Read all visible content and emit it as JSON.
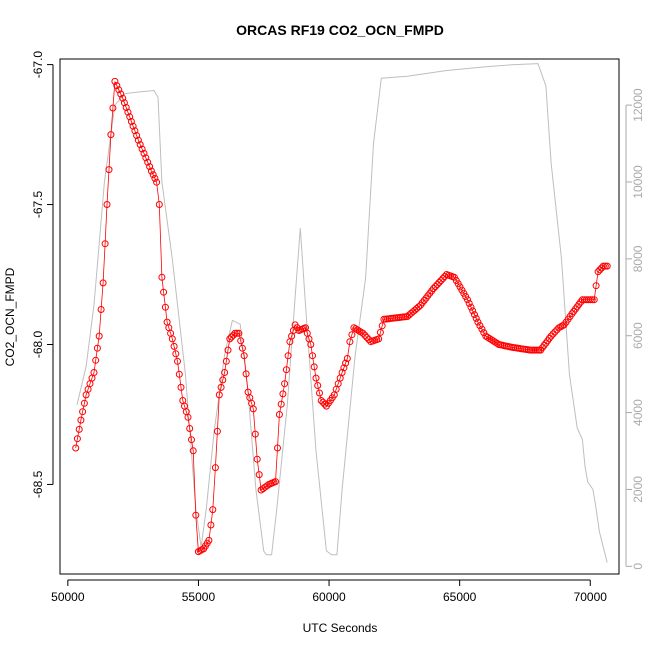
{
  "chart_data": {
    "type": "line",
    "title": "ORCAS RF19 CO2_OCN_FMPD",
    "xlabel": "UTC Seconds",
    "ylabel": "CO2_OCN_FMPD",
    "xlim": [
      49700,
      71100
    ],
    "ylim": [
      -68.82,
      -66.98
    ],
    "y2lim": [
      -200,
      13200
    ],
    "x_ticks": [
      50000,
      55000,
      60000,
      65000,
      70000
    ],
    "x_tick_labels": [
      "50000",
      "55000",
      "60000",
      "65000",
      "70000"
    ],
    "y_ticks": [
      -67.0,
      -67.5,
      -68.0,
      -68.5
    ],
    "y_tick_labels": [
      "-67.0",
      "-67.5",
      "-68.0",
      "-68.5"
    ],
    "y2_ticks": [
      0,
      2000,
      4000,
      6000,
      8000,
      10000,
      12000
    ],
    "y2_tick_labels": [
      "0",
      "2000",
      "4000",
      "6000",
      "8000",
      "10000",
      "12000"
    ],
    "grid": false,
    "series": [
      {
        "axis": "left",
        "style": "points-and-line",
        "color": "#ff0000",
        "key_points": [
          [
            50300,
            -68.37
          ],
          [
            50500,
            -68.27
          ],
          [
            50700,
            -68.18
          ],
          [
            51000,
            -68.1
          ],
          [
            51200,
            -67.97
          ],
          [
            51350,
            -67.78
          ],
          [
            51500,
            -67.5
          ],
          [
            51650,
            -67.25
          ],
          [
            51800,
            -67.06
          ],
          [
            52100,
            -67.12
          ],
          [
            52700,
            -67.27
          ],
          [
            53200,
            -67.38
          ],
          [
            53400,
            -67.42
          ],
          [
            53500,
            -67.5
          ],
          [
            53600,
            -67.76
          ],
          [
            53800,
            -67.92
          ],
          [
            54000,
            -67.98
          ],
          [
            54200,
            -68.06
          ],
          [
            54400,
            -68.2
          ],
          [
            54600,
            -68.26
          ],
          [
            54800,
            -68.38
          ],
          [
            54900,
            -68.61
          ],
          [
            55000,
            -68.74
          ],
          [
            55200,
            -68.73
          ],
          [
            55400,
            -68.7
          ],
          [
            55550,
            -68.59
          ],
          [
            55650,
            -68.44
          ],
          [
            55800,
            -68.18
          ],
          [
            56000,
            -68.1
          ],
          [
            56200,
            -67.98
          ],
          [
            56400,
            -67.96
          ],
          [
            56550,
            -67.96
          ],
          [
            56750,
            -68.04
          ],
          [
            56900,
            -68.17
          ],
          [
            57100,
            -68.23
          ],
          [
            57250,
            -68.41
          ],
          [
            57400,
            -68.52
          ],
          [
            57700,
            -68.5
          ],
          [
            57950,
            -68.49
          ],
          [
            58100,
            -68.25
          ],
          [
            58300,
            -68.14
          ],
          [
            58500,
            -67.99
          ],
          [
            58700,
            -67.93
          ],
          [
            58850,
            -67.95
          ],
          [
            59100,
            -67.94
          ],
          [
            59300,
            -68.0
          ],
          [
            59500,
            -68.12
          ],
          [
            59700,
            -68.2
          ],
          [
            59900,
            -68.22
          ],
          [
            60200,
            -68.18
          ],
          [
            60500,
            -68.1
          ],
          [
            60700,
            -68.05
          ],
          [
            60800,
            -67.99
          ],
          [
            60950,
            -67.94
          ],
          [
            61300,
            -67.96
          ],
          [
            61600,
            -67.99
          ],
          [
            61900,
            -67.98
          ],
          [
            62100,
            -67.91
          ],
          [
            63000,
            -67.9
          ],
          [
            63500,
            -67.86
          ],
          [
            64000,
            -67.8
          ],
          [
            64500,
            -67.75
          ],
          [
            64800,
            -67.76
          ],
          [
            65300,
            -67.84
          ],
          [
            65700,
            -67.92
          ],
          [
            66000,
            -67.97
          ],
          [
            66500,
            -68.0
          ],
          [
            67000,
            -68.01
          ],
          [
            67700,
            -68.02
          ],
          [
            68100,
            -68.02
          ],
          [
            68500,
            -67.97
          ],
          [
            68800,
            -67.94
          ],
          [
            69000,
            -67.93
          ],
          [
            69300,
            -67.89
          ],
          [
            69700,
            -67.84
          ],
          [
            70000,
            -67.84
          ],
          [
            70150,
            -67.84
          ],
          [
            70300,
            -67.74
          ],
          [
            70500,
            -67.72
          ],
          [
            70650,
            -67.72
          ]
        ]
      },
      {
        "axis": "right",
        "style": "line",
        "color": "#bebebe",
        "key_points": [
          [
            50350,
            4200
          ],
          [
            50700,
            5200
          ],
          [
            51000,
            6800
          ],
          [
            51400,
            10000
          ],
          [
            51800,
            12000
          ],
          [
            52200,
            12300
          ],
          [
            52800,
            12350
          ],
          [
            53300,
            12380
          ],
          [
            53450,
            12200
          ],
          [
            53600,
            10000
          ],
          [
            54000,
            8000
          ],
          [
            54500,
            5000
          ],
          [
            54900,
            1500
          ],
          [
            55100,
            500
          ],
          [
            55300,
            1500
          ],
          [
            55600,
            3500
          ],
          [
            56000,
            5500
          ],
          [
            56300,
            6400
          ],
          [
            56600,
            6300
          ],
          [
            56900,
            4500
          ],
          [
            57200,
            2000
          ],
          [
            57500,
            400
          ],
          [
            57600,
            300
          ],
          [
            57800,
            300
          ],
          [
            58000,
            1500
          ],
          [
            58400,
            4200
          ],
          [
            58700,
            7000
          ],
          [
            58900,
            8800
          ],
          [
            59100,
            6800
          ],
          [
            59500,
            3000
          ],
          [
            59900,
            400
          ],
          [
            60100,
            300
          ],
          [
            60300,
            300
          ],
          [
            60500,
            2000
          ],
          [
            61000,
            5500
          ],
          [
            61400,
            7500
          ],
          [
            61700,
            11000
          ],
          [
            62000,
            12700
          ],
          [
            63000,
            12750
          ],
          [
            64500,
            12900
          ],
          [
            66000,
            13000
          ],
          [
            67000,
            13050
          ],
          [
            68000,
            13080
          ],
          [
            68300,
            12500
          ],
          [
            68500,
            10500
          ],
          [
            68900,
            8000
          ],
          [
            69200,
            5000
          ],
          [
            69500,
            3600
          ],
          [
            69700,
            3300
          ],
          [
            69800,
            2600
          ],
          [
            69900,
            2200
          ],
          [
            70100,
            2000
          ],
          [
            70200,
            1600
          ],
          [
            70350,
            900
          ],
          [
            70500,
            500
          ],
          [
            70650,
            100
          ]
        ]
      }
    ]
  }
}
